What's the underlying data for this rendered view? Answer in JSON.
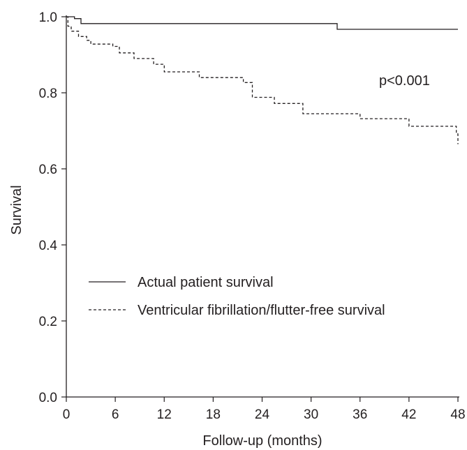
{
  "chart_data": {
    "type": "line",
    "title": "",
    "xlabel": "Follow-up (months)",
    "ylabel": "Survival",
    "xlim": [
      0,
      48
    ],
    "ylim": [
      0.0,
      1.0
    ],
    "xticks": [
      0,
      6,
      12,
      18,
      24,
      30,
      36,
      42,
      48
    ],
    "xtick_labels": [
      "0",
      "6",
      "12",
      "18",
      "24",
      "30",
      "36",
      "42",
      "48"
    ],
    "yticks": [
      0.0,
      0.2,
      0.4,
      0.6,
      0.8,
      1.0
    ],
    "ytick_labels": [
      "0.0",
      "0.2",
      "0.4",
      "0.6",
      "0.8",
      "1.0"
    ],
    "grid": false,
    "legend_position": "center-left",
    "annotation": "p<0.001",
    "series": [
      {
        "name": "Actual patient survival",
        "line_style": "solid",
        "color": "#231f20",
        "step": true,
        "x": [
          0,
          1,
          1.8,
          33.2,
          48
        ],
        "y": [
          1.0,
          0.995,
          0.982,
          0.967,
          0.967
        ]
      },
      {
        "name": "Ventricular fibrillation/flutter-free survival",
        "line_style": "dashed",
        "color": "#231f20",
        "step": true,
        "x": [
          0,
          0.2,
          0.6,
          1.5,
          2.5,
          3.0,
          5.7,
          6.5,
          8.3,
          10.7,
          12.0,
          16.3,
          21.7,
          22.8,
          25.5,
          29.0,
          36.0,
          42.0,
          47.8,
          48
        ],
        "y": [
          1.0,
          0.975,
          0.962,
          0.948,
          0.938,
          0.928,
          0.922,
          0.905,
          0.89,
          0.875,
          0.855,
          0.84,
          0.827,
          0.788,
          0.772,
          0.745,
          0.732,
          0.712,
          0.692,
          0.665
        ]
      }
    ]
  }
}
